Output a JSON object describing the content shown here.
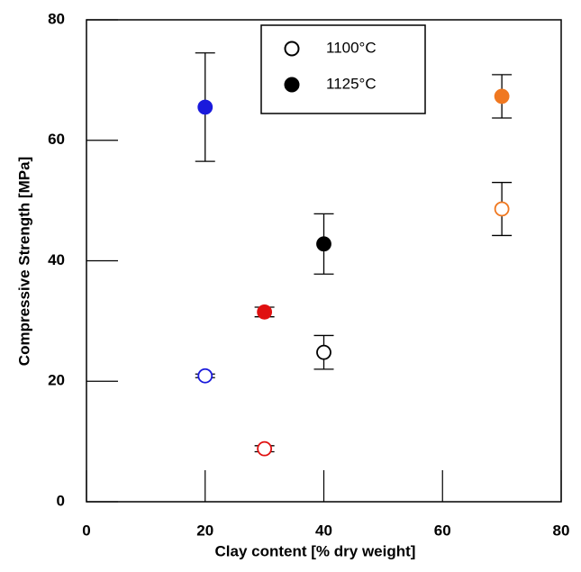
{
  "chart_data": {
    "type": "scatter",
    "x_label": "Clay content [% dry weight]",
    "y_label": "Compressive Strength [MPa]",
    "xlim": [
      0,
      80
    ],
    "xticks": [
      0,
      20,
      40,
      60,
      80
    ],
    "ylim": [
      0,
      80
    ],
    "yticks": [
      0,
      20,
      40,
      60,
      80
    ],
    "legend": "top-center",
    "series": [
      {
        "name": "1100°C",
        "color": "#000000",
        "filled": false,
        "x": [
          20,
          30,
          40,
          70
        ],
        "values": [
          20.9,
          8.8,
          24.8,
          48.6
        ],
        "errors": [
          0.3,
          0.5,
          2.8,
          4.4
        ],
        "colors": [
          "#1a1adc",
          "#e01010",
          "#000000",
          "#f07820"
        ]
      },
      {
        "name": "1125°C",
        "color": "#000000",
        "filled": true,
        "x": [
          20,
          30,
          40,
          70
        ],
        "values": [
          65.5,
          31.5,
          42.8,
          67.3
        ],
        "errors": [
          9.0,
          0.8,
          5.0,
          3.6
        ],
        "colors": [
          "#1a1adc",
          "#e01010",
          "#000000",
          "#f07820"
        ]
      }
    ]
  }
}
